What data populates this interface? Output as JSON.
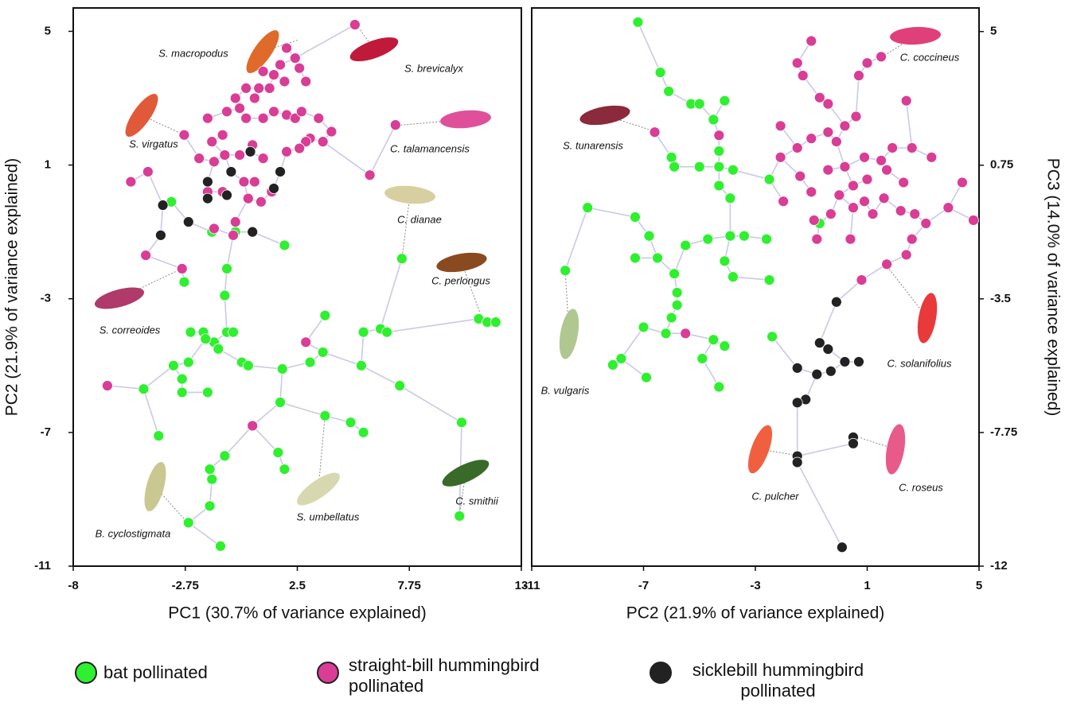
{
  "chart_data": [
    {
      "type": "scatter",
      "xlabel": "PC1 (30.7% of variance explained)",
      "ylabel": "PC2 (21.9% of variance explained)",
      "xlim": [
        -8,
        13
      ],
      "xticks": [
        -8,
        -2.75,
        2.5,
        7.75,
        13
      ],
      "ylim": [
        -11,
        5.7
      ],
      "yticks": [
        5,
        1,
        -3,
        -7,
        -11
      ],
      "annotations": [
        "S. macropodus",
        "S. brevicalyx",
        "S. virgatus",
        "C. talamancensis",
        "C. dianae",
        "C. perlongus",
        "S. correoides",
        "B. cyclostigmata",
        "S. umbellatus",
        "C. smithii"
      ],
      "series": [
        {
          "name": "bat pollinated",
          "color": "#2ff02f",
          "x": [
            -3.4,
            -1.5,
            -0.4,
            1.9,
            7.4,
            -0.8,
            -2.8,
            -0.9,
            -2.5,
            -1.9,
            -0.8,
            -0.5,
            -1.4,
            -1.8,
            -1.2,
            -3.3,
            -2.6,
            -0.1,
            0.2,
            -2.9,
            -4.7,
            -2.9,
            -1.7,
            -4.0,
            1.8,
            3.1,
            1.7,
            3.8,
            3.7,
            3.8,
            5.0,
            5.6,
            5.5,
            6.4,
            6.7,
            5.6,
            7.3,
            11.0,
            11.4,
            11.8,
            10.2,
            10.1,
            -1.6,
            -1.5,
            -0.9,
            -1.6,
            1.9,
            -2.6,
            -1.1,
            1.6
          ],
          "values": [
            -0.1,
            -1.0,
            -1.0,
            -1.4,
            -1.8,
            -2.1,
            -2.5,
            -2.9,
            -4.0,
            -4.0,
            -4.0,
            -4.0,
            -4.3,
            -4.2,
            -4.5,
            -5.0,
            -4.9,
            -4.9,
            -5.0,
            -5.4,
            -5.7,
            -5.8,
            -5.8,
            -7.1,
            -5.1,
            -4.9,
            -6.1,
            -3.5,
            -4.6,
            -6.5,
            -6.7,
            -7.0,
            -5.0,
            -3.9,
            -4.0,
            -4.0,
            -5.6,
            -3.6,
            -3.7,
            -3.7,
            -6.7,
            -9.5,
            -8.1,
            -8.4,
            -7.7,
            -9.2,
            -8.1,
            -9.7,
            -10.4,
            -7.6
          ]
        },
        {
          "name": "straight-bill hummingbird pollinated",
          "color": "#d93d95",
          "x": [
            5.2,
            2.0,
            2.4,
            1.7,
            2.6,
            0.9,
            1.4,
            2.9,
            1.9,
            1.2,
            0.7,
            0.1,
            -0.4,
            0.5,
            -0.2,
            -0.8,
            0.1,
            0.9,
            1.4,
            2.0,
            2.4,
            3.5,
            -2.8,
            -1.5,
            -1.0,
            -2.1,
            -1.4,
            -0.2,
            0.9,
            2.0,
            3.1,
            3.7,
            4.1,
            0.0,
            0.5,
            -1.0,
            -1.7,
            0.2,
            1.3,
            -5.3,
            -4.5,
            5.9,
            -0.4,
            -0.5,
            -1.4,
            -2.9,
            2.9,
            0.4,
            -6.4,
            -1.7,
            2.7,
            2.9,
            -0.9,
            0.4,
            0.8,
            -4.6,
            7.1,
            2.6
          ],
          "values": [
            5.2,
            4.5,
            4.2,
            4.0,
            3.9,
            3.8,
            3.7,
            3.5,
            3.5,
            3.3,
            3.3,
            3.3,
            3.0,
            3.0,
            2.7,
            2.6,
            2.4,
            2.4,
            2.6,
            2.5,
            2.4,
            2.4,
            1.9,
            1.7,
            1.9,
            1.2,
            1.1,
            1.3,
            1.2,
            1.4,
            1.8,
            1.7,
            2.0,
            0.5,
            0.5,
            0.2,
            0.2,
            0.0,
            0.2,
            0.5,
            0.8,
            0.7,
            -0.7,
            -1.1,
            -0.9,
            -2.1,
            -4.3,
            -6.8,
            -5.6,
            2.4,
            2.6,
            1.7,
            1.3,
            1.6,
            -0.1,
            -1.7,
            2.2,
            1.5
          ]
        },
        {
          "name": "sicklebill hummingbird pollinated",
          "color": "#222222",
          "x": [
            -3.8,
            -2.6,
            -3.9,
            -1.7,
            -0.6,
            0.3,
            -0.8,
            0.4,
            1.7,
            1.4,
            -1.7
          ],
          "values": [
            -0.2,
            -0.7,
            -1.1,
            0.5,
            0.8,
            1.4,
            0.1,
            -1.0,
            0.8,
            0.3,
            0.0
          ]
        }
      ]
    },
    {
      "type": "scatter",
      "xlabel": "PC2 (21.9% of variance explained)",
      "ylabel": "PC3 (14.0% of variance explained)",
      "xlim": [
        -11,
        5
      ],
      "xticks": [
        -11,
        -7,
        -3,
        1,
        5
      ],
      "ylim": [
        -12,
        5.75
      ],
      "yticks": [
        5,
        0.75,
        -3.5,
        -7.75,
        -12
      ],
      "annotations": [
        "C. coccineus",
        "S. tunarensis",
        "C. solanifolius",
        "B. vulgaris",
        "C. pulcher",
        "C. roseus"
      ],
      "series": [
        {
          "color": "#2ff02f",
          "x": [
            -7.2,
            -6.4,
            -6.1,
            -5.3,
            -5.0,
            -4.1,
            -4.5,
            -4.3,
            -4.3,
            -3.8,
            -6.0,
            -5.9,
            -5.0,
            -4.3,
            -2.5,
            -3.9,
            -9.0,
            -7.3,
            -6.8,
            -7.3,
            -6.5,
            -5.5,
            -4.7,
            -3.9,
            -3.4,
            -2.6,
            -4.1,
            -3.8,
            -2.5,
            -9.8,
            -5.9,
            -5.8,
            -5.8,
            -6.0,
            -7.0,
            -6.2,
            -4.5,
            -4.1,
            -4.9,
            -2.4,
            -8.1,
            -7.8,
            -6.9,
            -4.3,
            -0.7
          ],
          "values": [
            5.3,
            3.7,
            3.1,
            2.7,
            2.7,
            2.8,
            2.2,
            1.2,
            0.7,
            0.6,
            1.0,
            0.7,
            0.7,
            0.1,
            0.3,
            -0.3,
            -0.6,
            -0.9,
            -1.5,
            -2.2,
            -2.2,
            -1.8,
            -1.6,
            -1.5,
            -1.5,
            -1.6,
            -2.3,
            -2.8,
            -2.9,
            -2.6,
            -2.7,
            -3.3,
            -3.7,
            -4.1,
            -4.4,
            -4.6,
            -4.8,
            -5.0,
            -5.4,
            -4.7,
            -5.6,
            -5.4,
            -6.0,
            -6.3,
            -1.1
          ]
        },
        {
          "color": "#d93d95",
          "x": [
            -1.0,
            -1.5,
            -1.3,
            1.5,
            1.0,
            0.7,
            2.4,
            -0.4,
            0.2,
            0.6,
            -0.4,
            -1.0,
            -0.1,
            -1.5,
            -2.1,
            -4.3,
            -6.6,
            1.9,
            2.6,
            3.3,
            -1.4,
            -0.4,
            0.2,
            1.0,
            1.7,
            2.3,
            -1.0,
            0.0,
            0.9,
            1.6,
            2.2,
            2.7,
            4.4,
            3.9,
            4.8,
            3.1,
            2.4,
            2.6,
            -0.9,
            -0.3,
            0.4,
            -0.8,
            -2.0,
            1.2,
            -0.7,
            -2.1,
            0.9,
            1.5,
            0.5,
            0.5,
            1.7,
            0.8,
            -5.5
          ],
          "values": [
            4.7,
            4.0,
            3.6,
            4.2,
            4.0,
            3.6,
            2.8,
            2.7,
            2.0,
            2.3,
            1.8,
            1.6,
            1.5,
            1.3,
            1.0,
            1.7,
            1.8,
            1.3,
            1.3,
            1.0,
            0.4,
            0.6,
            0.7,
            0.3,
            0.6,
            0.2,
            -0.1,
            -0.2,
            -0.4,
            -0.3,
            -0.7,
            -0.8,
            0.2,
            -0.6,
            -1.0,
            -1.1,
            -2.1,
            -1.6,
            -1.0,
            -0.8,
            -1.6,
            -1.6,
            -0.4,
            -0.8,
            2.9,
            2.0,
            1.0,
            0.9,
            0.1,
            -0.6,
            -2.4,
            -2.9,
            -4.6
          ]
        },
        {
          "color": "#222222",
          "x": [
            -0.1,
            -0.7,
            -0.4,
            -1.5,
            -0.8,
            -0.3,
            0.2,
            0.7,
            -1.2,
            -1.5,
            0.5,
            0.5,
            -1.5,
            -1.5,
            0.1
          ],
          "values": [
            -3.6,
            -4.9,
            -5.1,
            -5.7,
            -5.9,
            -5.8,
            -5.5,
            -5.5,
            -6.7,
            -6.8,
            -7.9,
            -8.1,
            -8.5,
            -8.7,
            -11.4
          ]
        }
      ]
    }
  ]
}
